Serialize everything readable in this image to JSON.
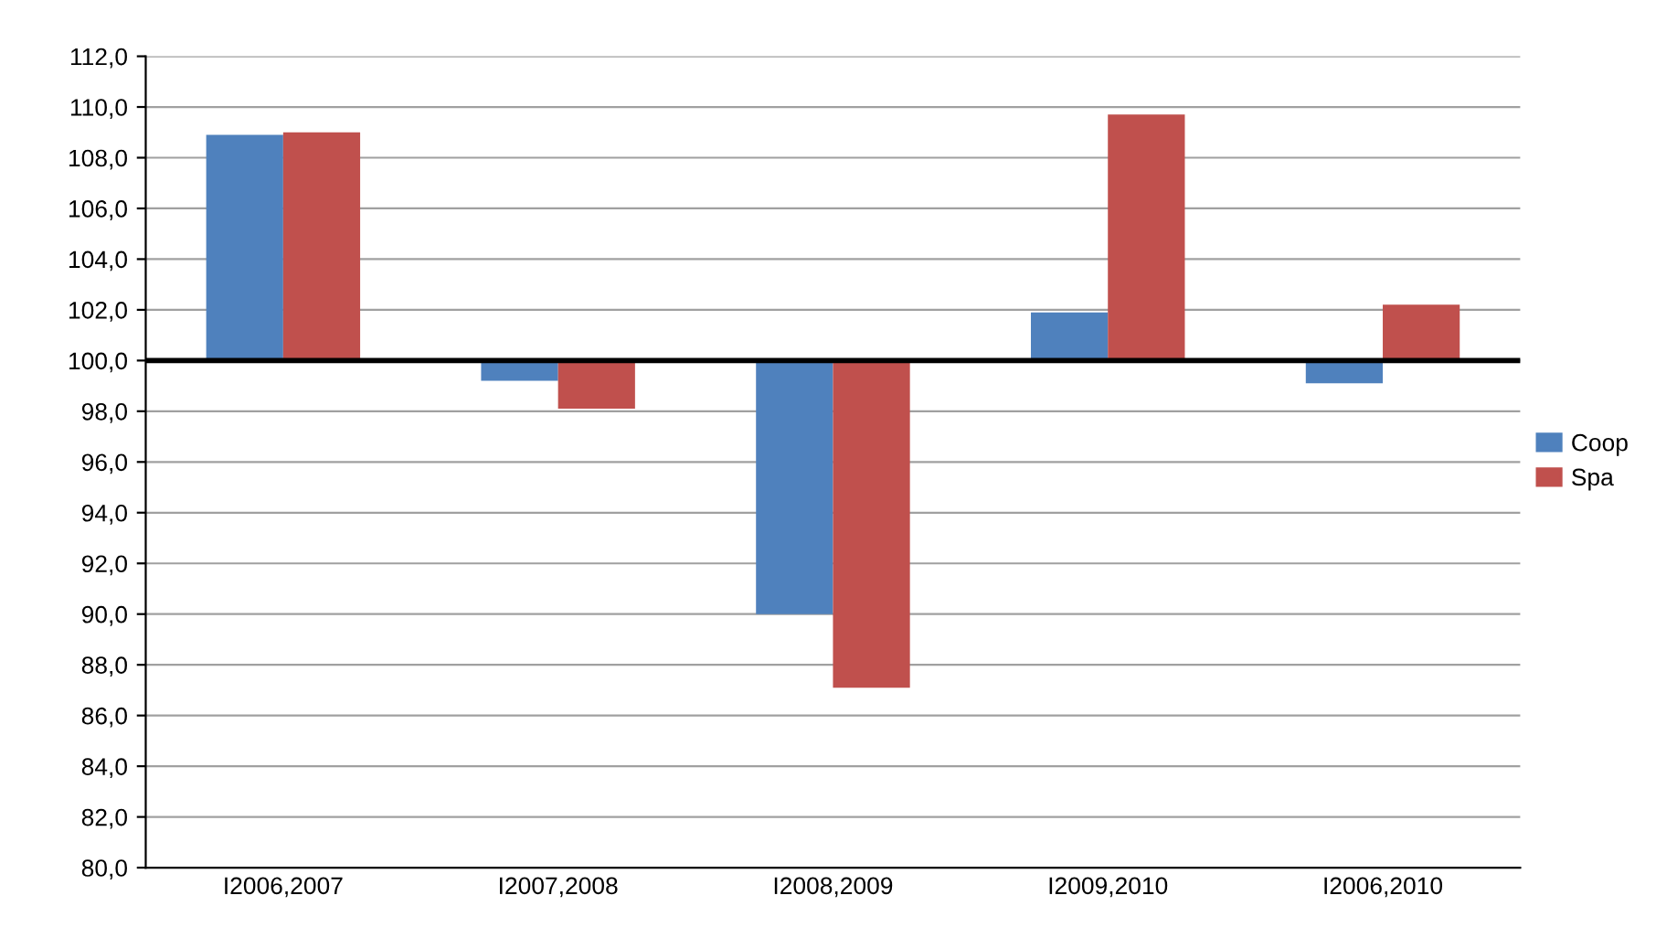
{
  "chart_data": {
    "type": "bar",
    "categories": [
      "I2006,2007",
      "I2007,2008",
      "I2008,2009",
      "I2009,2010",
      "I2006,2010"
    ],
    "series": [
      {
        "name": "Coop",
        "color": "#4f81bd",
        "base": [
          100,
          100,
          100,
          100,
          100
        ],
        "values": [
          8.9,
          -0.8,
          -10.0,
          1.9,
          -0.9
        ]
      },
      {
        "name": "Spa",
        "color": "#c0504d",
        "base": [
          100,
          100,
          100,
          100,
          100
        ],
        "values": [
          9.0,
          -1.9,
          -12.9,
          9.7,
          2.2
        ]
      }
    ],
    "ylim": [
      80,
      112
    ],
    "yticks": [
      {
        "value": 80,
        "label": "80,0"
      },
      {
        "value": 82,
        "label": "82,0"
      },
      {
        "value": 84,
        "label": "84,0"
      },
      {
        "value": 86,
        "label": "86,0"
      },
      {
        "value": 88,
        "label": "88,0"
      },
      {
        "value": 90,
        "label": "90,0"
      },
      {
        "value": 92,
        "label": "92,0"
      },
      {
        "value": 94,
        "label": "94,0"
      },
      {
        "value": 96,
        "label": "96,0"
      },
      {
        "value": 98,
        "label": "98,0"
      },
      {
        "value": 100,
        "label": "100,0"
      },
      {
        "value": 102,
        "label": "102,0"
      },
      {
        "value": 104,
        "label": "104,0"
      },
      {
        "value": 106,
        "label": "106,0"
      },
      {
        "value": 108,
        "label": "108,0"
      },
      {
        "value": 110,
        "label": "110,0"
      },
      {
        "value": 112,
        "label": "112,0"
      }
    ],
    "ref_lines": [
      {
        "axis": "y",
        "value": 100,
        "color": "#000000"
      }
    ],
    "grid": "y",
    "legend": "right"
  }
}
